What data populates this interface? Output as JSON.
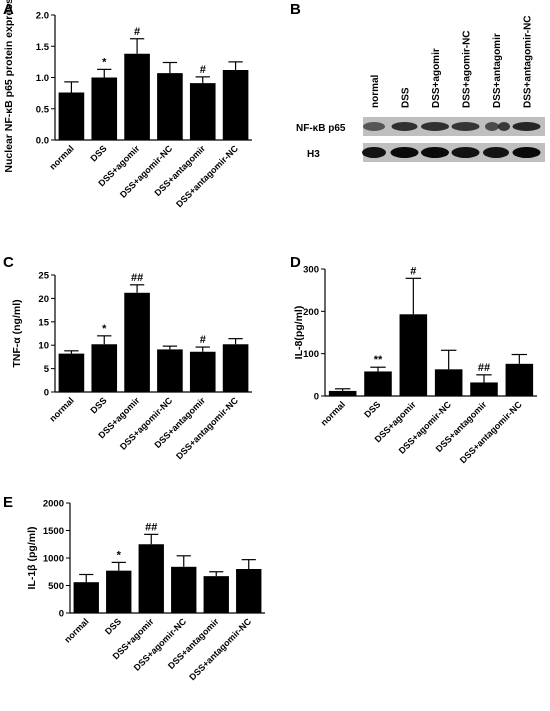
{
  "panels": {
    "A": "A",
    "B": "B",
    "C": "C",
    "D": "D",
    "E": "E"
  },
  "categories": [
    "normal",
    "DSS",
    "DSS+agomir",
    "DSS+agomir-NC",
    "DSS+antagomir",
    "DSS+antagomir-NC"
  ],
  "blot": {
    "lanes": [
      "normal",
      "DSS",
      "DSS+agomir",
      "DSS+agomir-NC",
      "DSS+antagomir",
      "DSS+antagomir-NC"
    ],
    "row1": "NF-κB p65",
    "row2": "H3"
  },
  "chart_data": [
    {
      "id": "A",
      "type": "bar",
      "ylabel": "Nuclear NF-κB p65 protein expression",
      "ylim": [
        0,
        2.0
      ],
      "yticks": [
        "0.0",
        "0.5",
        "1.0",
        "1.5",
        "2.0"
      ],
      "categories": [
        "normal",
        "DSS",
        "DSS+agomir",
        "DSS+agomir-NC",
        "DSS+antagomir",
        "DSS+antagomir-NC"
      ],
      "values": [
        0.76,
        1.0,
        1.38,
        1.07,
        0.91,
        1.12
      ],
      "errors": [
        0.17,
        0.13,
        0.24,
        0.17,
        0.1,
        0.13
      ],
      "sig": [
        "",
        "*",
        "#",
        "",
        "#",
        ""
      ]
    },
    {
      "id": "C",
      "type": "bar",
      "ylabel": "TNF-α (ng/ml)",
      "ylim": [
        0,
        25
      ],
      "yticks": [
        "0",
        "5",
        "10",
        "15",
        "20",
        "25"
      ],
      "categories": [
        "normal",
        "DSS",
        "DSS+agomir",
        "DSS+agomir-NC",
        "DSS+antagomir",
        "DSS+antagomir-NC"
      ],
      "values": [
        8.2,
        10.2,
        21.2,
        9.1,
        8.6,
        10.2
      ],
      "errors": [
        0.6,
        1.8,
        1.7,
        0.7,
        1.0,
        1.2
      ],
      "sig": [
        "",
        "*",
        "##",
        "",
        "#",
        ""
      ]
    },
    {
      "id": "D",
      "type": "bar",
      "ylabel": "IL-8(pg/ml)",
      "ylim": [
        0,
        300
      ],
      "yticks": [
        "0",
        "100",
        "200",
        "300"
      ],
      "categories": [
        "normal",
        "DSS",
        "DSS+agomir",
        "DSS+agomir-NC",
        "DSS+antagomir",
        "DSS+antagomir-NC"
      ],
      "values": [
        12,
        58,
        193,
        63,
        32,
        76
      ],
      "errors": [
        5,
        10,
        85,
        45,
        18,
        22
      ],
      "sig": [
        "",
        "**",
        "#",
        "",
        "##",
        ""
      ]
    },
    {
      "id": "E",
      "type": "bar",
      "ylabel": "IL-1β (pg/ml)",
      "ylim": [
        0,
        2000
      ],
      "yticks": [
        "0",
        "500",
        "1000",
        "1500",
        "2000"
      ],
      "categories": [
        "normal",
        "DSS",
        "DSS+agomir",
        "DSS+agomir-NC",
        "DSS+antagomir",
        "DSS+antagomir-NC"
      ],
      "values": [
        560,
        770,
        1250,
        840,
        670,
        800
      ],
      "errors": [
        140,
        150,
        180,
        200,
        80,
        170
      ],
      "sig": [
        "",
        "*",
        "##",
        "",
        "",
        ""
      ]
    }
  ]
}
